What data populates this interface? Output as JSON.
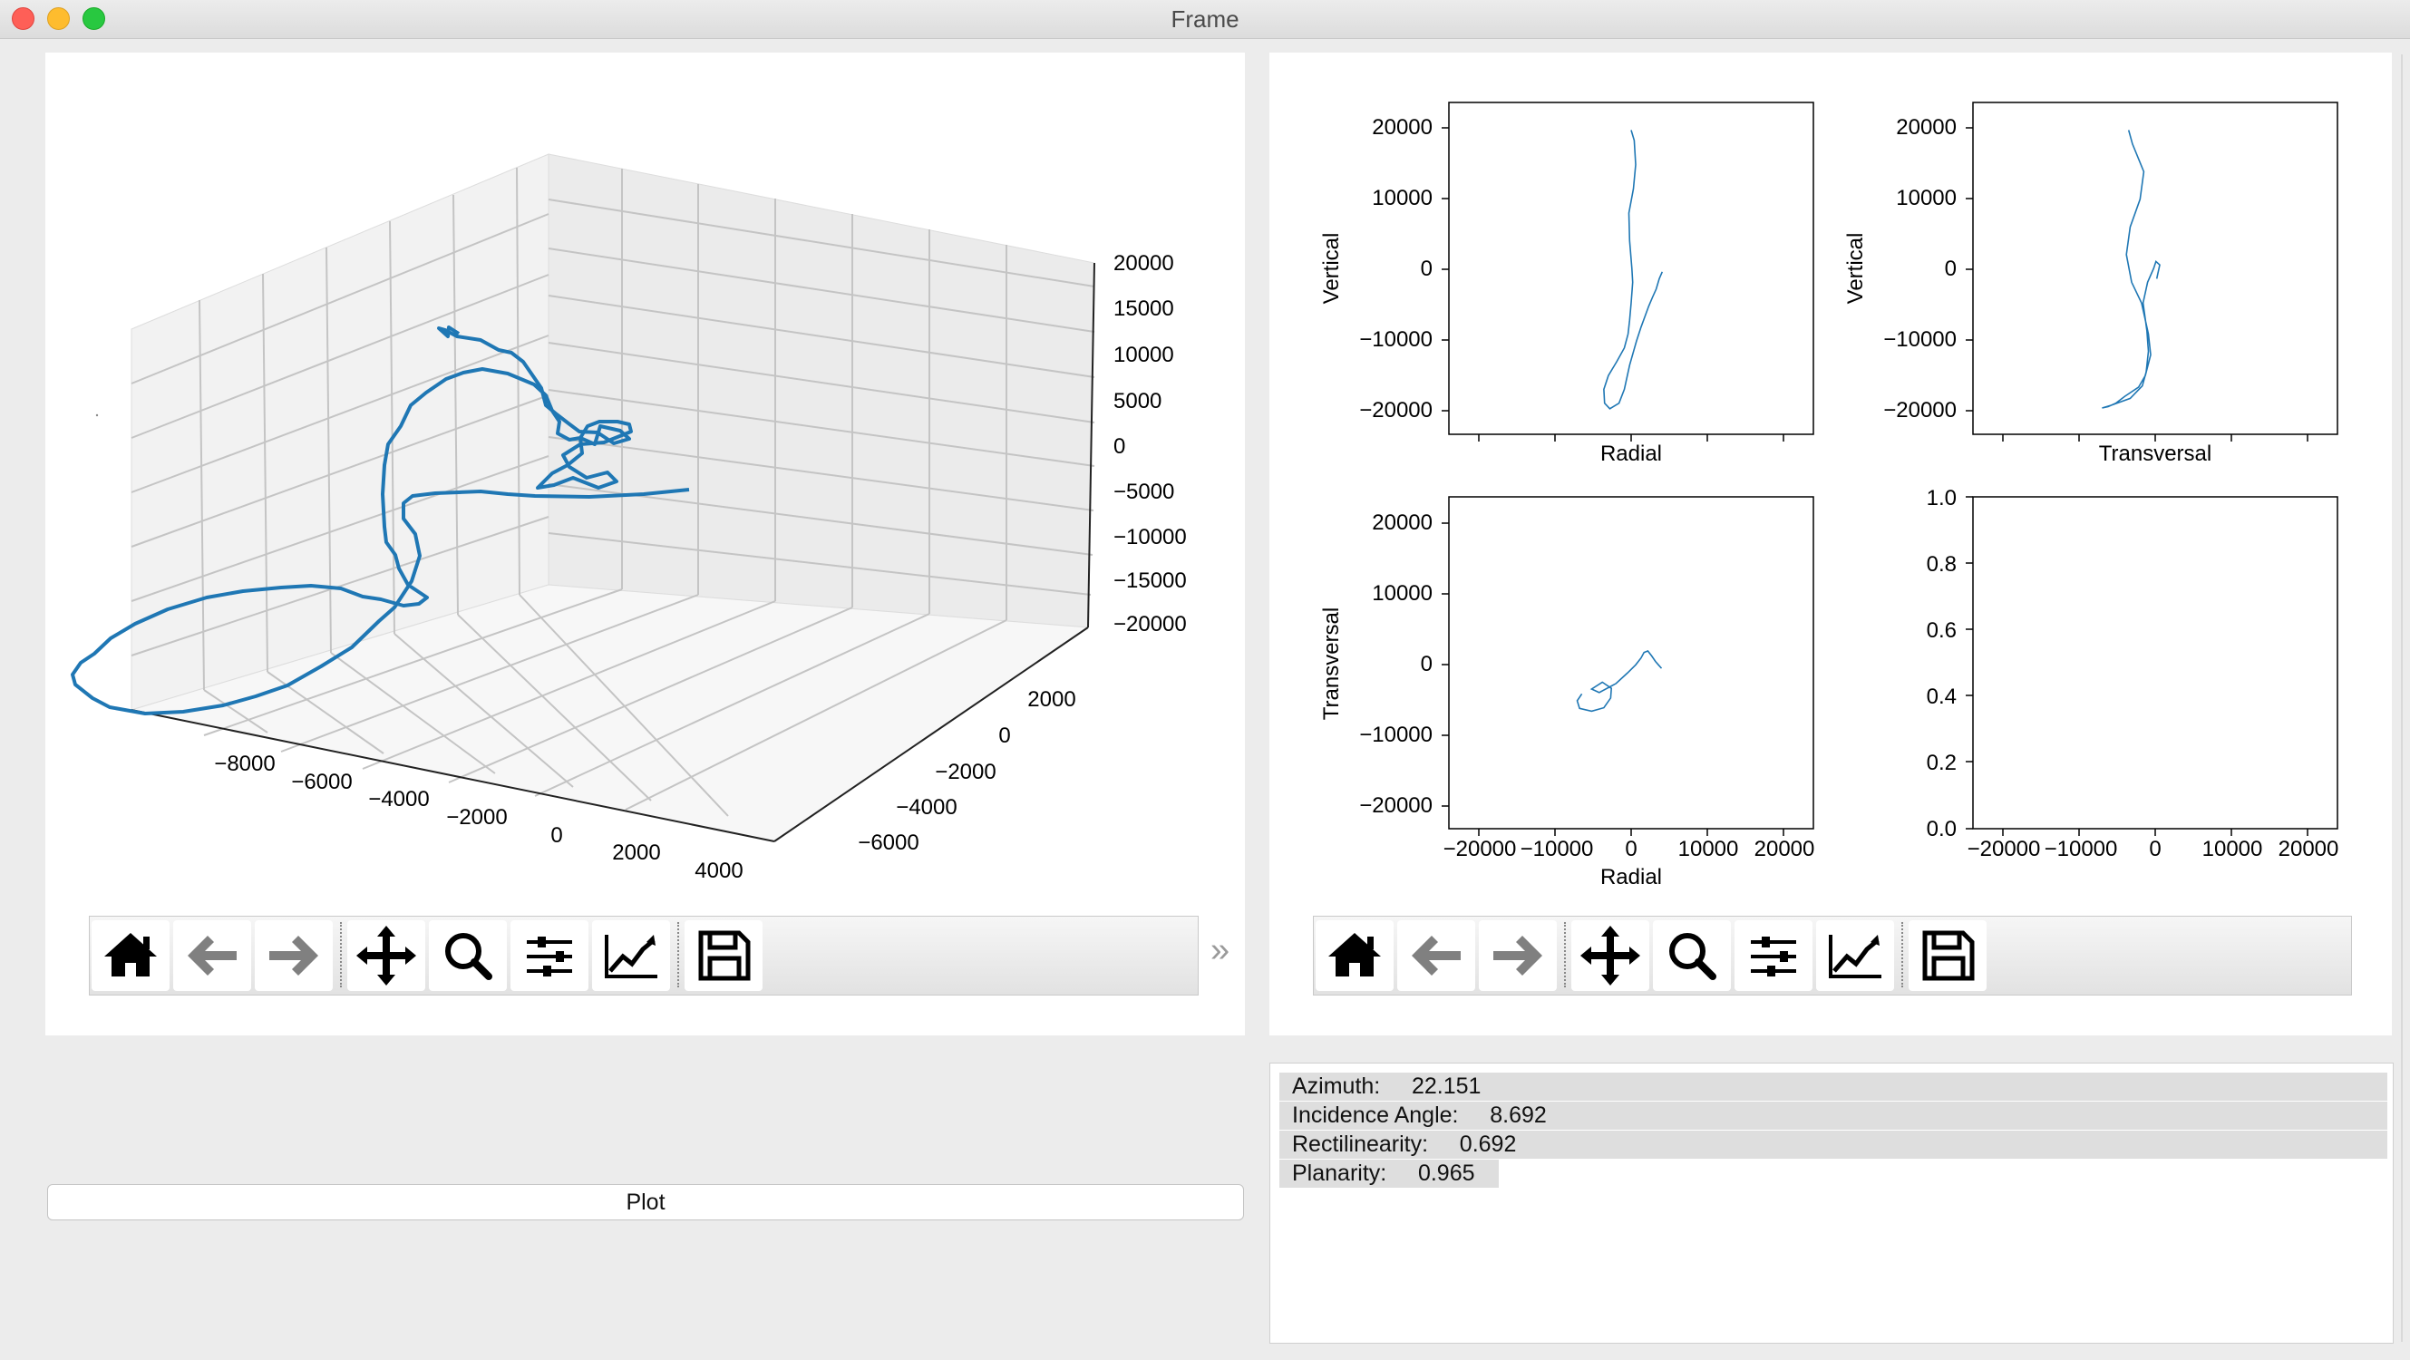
{
  "window": {
    "title": "Frame"
  },
  "toolbar_icons": [
    "home-icon",
    "back-arrow-icon",
    "forward-arrow-icon",
    "move-icon",
    "zoom-icon",
    "subplots-icon",
    "edit-axes-icon",
    "save-icon"
  ],
  "toolbar_more": "»",
  "plot_button": {
    "label": "Plot"
  },
  "info": {
    "rows": [
      {
        "label": "Azimuth:",
        "value": "22.151"
      },
      {
        "label": "Incidence Angle:",
        "value": "8.692"
      },
      {
        "label": "Rectilinearity:",
        "value": "0.692"
      },
      {
        "label": "Planarity:",
        "value": "0.965"
      }
    ]
  },
  "chart_data": [
    {
      "type": "line",
      "projection": "3d",
      "x_ticks": [
        "−8000",
        "−6000",
        "−4000",
        "−2000",
        "0",
        "2000",
        "4000"
      ],
      "y_ticks": [
        "2000",
        "0",
        "−2000",
        "−4000",
        "−6000"
      ],
      "z_ticks": [
        "20000",
        "15000",
        "10000",
        "5000",
        "0",
        "−5000",
        "−10000",
        "−15000",
        "−20000"
      ],
      "xlim": [
        -8000,
        4000
      ],
      "ylim": [
        -6000,
        2000
      ],
      "zlim": [
        -20000,
        20000
      ],
      "line_color": "#1f77b4"
    },
    {
      "type": "line",
      "xlabel": "Radial",
      "ylabel": "Vertical",
      "y_ticks": [
        "20000",
        "10000",
        "0",
        "−10000",
        "−20000"
      ],
      "xlim": [
        -24000,
        24000
      ],
      "ylim": [
        -24000,
        24000
      ],
      "line_color": "#1f77b4",
      "x": [
        0,
        400,
        600,
        300,
        -300,
        -200,
        100,
        200,
        0,
        -200,
        -400,
        -900,
        -1900,
        -3000,
        -3600,
        -3500,
        -2800,
        -1600,
        -900,
        -200,
        700,
        1300,
        1800,
        2300,
        2800,
        3300,
        3700,
        4100
      ],
      "y": [
        20000,
        18500,
        15000,
        11500,
        8000,
        4000,
        0,
        -2000,
        -5000,
        -7500,
        -9500,
        -11500,
        -13500,
        -15500,
        -17500,
        -19500,
        -20300,
        -19500,
        -17500,
        -14000,
        -10500,
        -8500,
        -7000,
        -5500,
        -4200,
        -3000,
        -1500,
        -500
      ]
    },
    {
      "type": "line",
      "xlabel": "Transversal",
      "ylabel": "Vertical",
      "y_ticks": [
        "20000",
        "10000",
        "0",
        "−10000",
        "−20000"
      ],
      "xlim": [
        -24000,
        24000
      ],
      "ylim": [
        -24000,
        24000
      ],
      "line_color": "#1f77b4",
      "x": [
        -3500,
        -3000,
        -1500,
        -2000,
        -3300,
        -3800,
        -3100,
        -1800,
        -1400,
        -900,
        -600,
        -1300,
        -2200,
        -4000,
        -5200,
        -6200,
        -7000,
        -5800,
        -3300,
        -1700,
        -1200,
        -900,
        -1100,
        -1600,
        -1000,
        -200,
        100,
        600,
        300,
        200
      ],
      "y": [
        20000,
        18000,
        14000,
        10000,
        6000,
        2000,
        -2000,
        -5000,
        -7000,
        -9500,
        -12500,
        -15500,
        -17200,
        -18500,
        -19500,
        -20000,
        -20200,
        -19800,
        -18800,
        -17000,
        -15000,
        -12000,
        -9000,
        -5000,
        -2000,
        0,
        1000,
        500,
        -1000,
        -1500
      ]
    },
    {
      "type": "line",
      "xlabel": "Radial",
      "ylabel": "Transversal",
      "x_ticks": [
        "−20000",
        "−10000",
        "0",
        "10000",
        "20000"
      ],
      "y_ticks": [
        "20000",
        "10000",
        "0",
        "−10000",
        "−20000"
      ],
      "xlim": [
        -24000,
        24000
      ],
      "ylim": [
        -24000,
        24000
      ],
      "line_color": "#1f77b4",
      "x": [
        -6500,
        -7100,
        -6800,
        -5200,
        -3600,
        -2700,
        -2600,
        -3800,
        -5200,
        -4200,
        -2000,
        -500,
        600,
        1300,
        1700,
        2200,
        2700,
        3200,
        3600,
        4000
      ],
      "y": [
        -4500,
        -5500,
        -6600,
        -7000,
        -6500,
        -5100,
        -3700,
        -2800,
        -3800,
        -4300,
        -3000,
        -1500,
        -300,
        700,
        1500,
        1700,
        1000,
        200,
        -300,
        -800
      ]
    },
    {
      "type": "line",
      "x_ticks": [
        "−20000",
        "−10000",
        "0",
        "10000",
        "20000"
      ],
      "y_ticks": [
        "1.0",
        "0.8",
        "0.6",
        "0.4",
        "0.2",
        "0.0"
      ],
      "xlim": [
        -24000,
        24000
      ],
      "ylim": [
        0,
        1
      ]
    }
  ]
}
